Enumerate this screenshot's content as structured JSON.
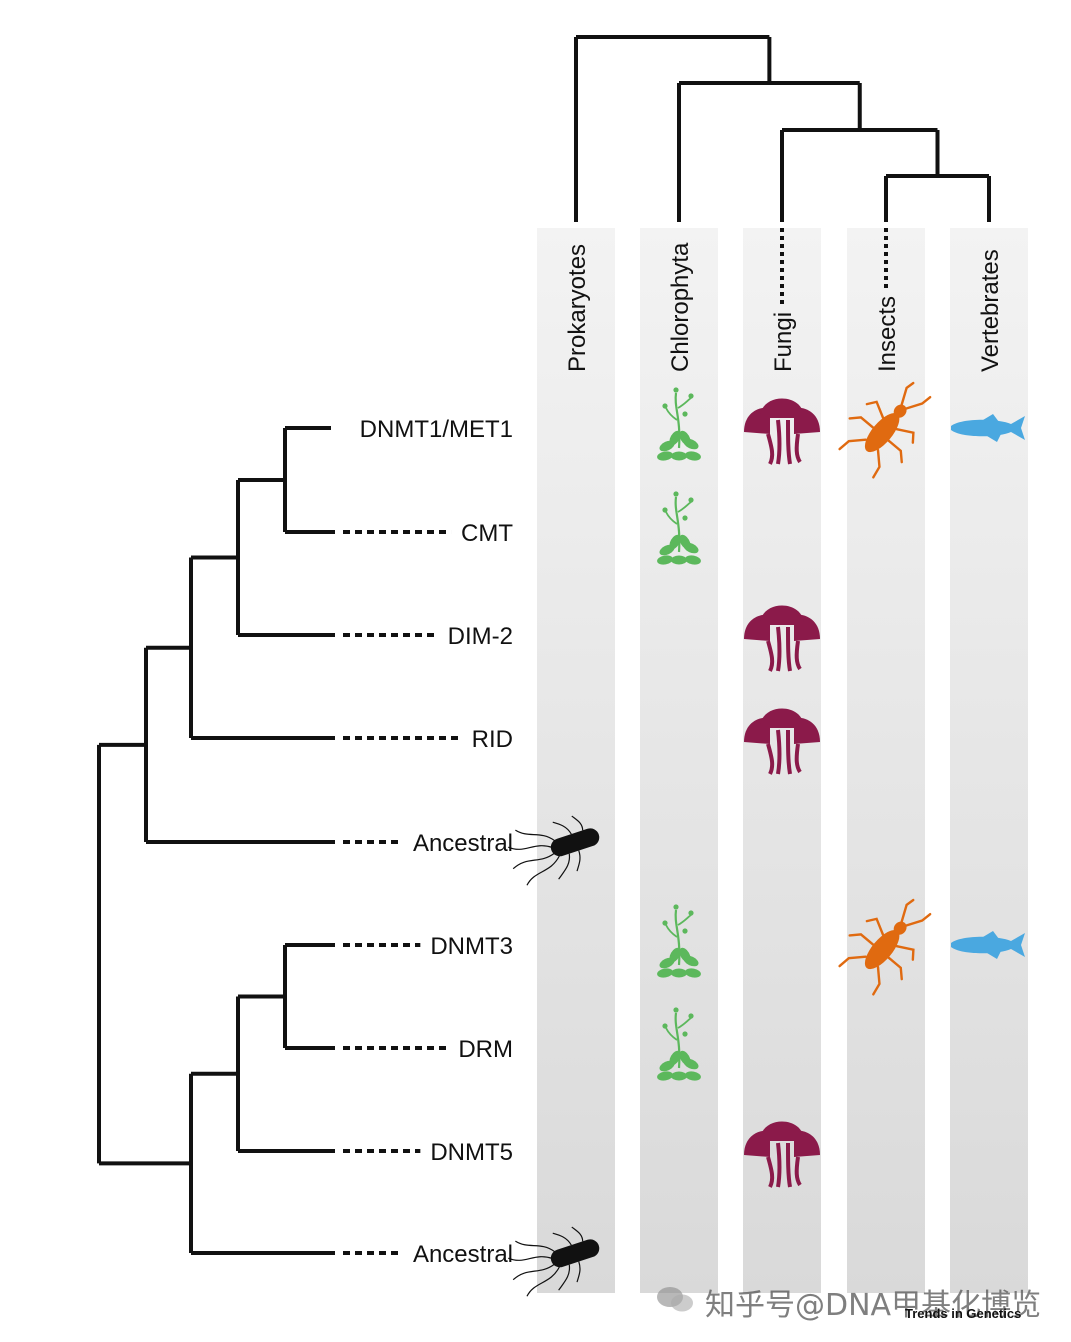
{
  "taxa": [
    {
      "key": "prokaryotes",
      "label": "Prokaryotes"
    },
    {
      "key": "chlorophyta",
      "label": "Chlorophyta"
    },
    {
      "key": "fungi",
      "label": "Fungi"
    },
    {
      "key": "insects",
      "label": "Insects"
    },
    {
      "key": "vertebrates",
      "label": "Vertebrates"
    }
  ],
  "families": [
    {
      "label": "DNMT1/MET1",
      "present": [
        "chlorophyta",
        "fungi",
        "insects",
        "vertebrates"
      ]
    },
    {
      "label": "CMT",
      "present": [
        "chlorophyta"
      ]
    },
    {
      "label": "DIM-2",
      "present": [
        "fungi"
      ]
    },
    {
      "label": "RID",
      "present": [
        "fungi"
      ]
    },
    {
      "label": "Ancestral",
      "present": [
        "prokaryotes"
      ]
    },
    {
      "label": "DNMT3",
      "present": [
        "chlorophyta",
        "insects",
        "vertebrates"
      ]
    },
    {
      "label": "DRM",
      "present": [
        "chlorophyta"
      ]
    },
    {
      "label": "DNMT5",
      "present": [
        "fungi"
      ]
    },
    {
      "label": "Ancestral",
      "present": [
        "prokaryotes"
      ]
    }
  ],
  "icons": {
    "prokaryotes": "bacterium-icon",
    "chlorophyta": "plant-icon",
    "fungi": "mushroom-icon",
    "insects": "insect-icon",
    "vertebrates": "fish-icon"
  },
  "colors": {
    "tree": "#111111",
    "column_top": "#f3f3f3",
    "column_bottom": "#d9d9d9",
    "plant": "#5cb85c",
    "mushroom": "#8b1a4a",
    "insect": "#e06a10",
    "fish": "#4aa8e0",
    "bacterium": "#111111"
  },
  "footer": {
    "watermark": "知乎号@DNA甲基化博览",
    "journal": "Trends in Genetics"
  }
}
